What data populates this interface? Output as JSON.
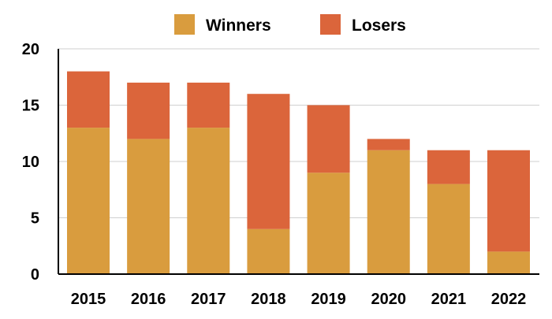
{
  "chart_data": {
    "type": "bar",
    "stacked": true,
    "categories": [
      "2015",
      "2016",
      "2017",
      "2018",
      "2019",
      "2020",
      "2021",
      "2022"
    ],
    "series": [
      {
        "name": "Winners",
        "color": "#D99C3E",
        "values": [
          13,
          12,
          13,
          4,
          9,
          11,
          8,
          2
        ]
      },
      {
        "name": "Losers",
        "color": "#DB653B",
        "values": [
          5,
          5,
          4,
          12,
          6,
          1,
          3,
          9
        ]
      }
    ],
    "title": "",
    "xlabel": "",
    "ylabel": "",
    "ylim": [
      0,
      20
    ],
    "yticks": [
      "0",
      "5",
      "10",
      "15",
      "20"
    ],
    "grid": true,
    "legend_position": "top"
  }
}
